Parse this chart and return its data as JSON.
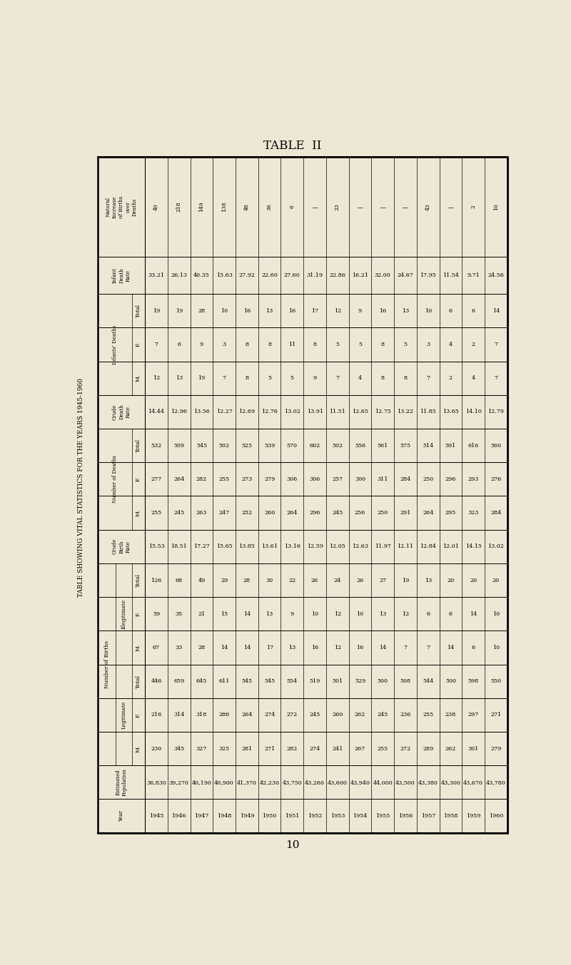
{
  "title": "TABLE  II",
  "subtitle": "TABLE SHOWING VITAL STATISTICS FOR THE YEARS 1945-1960",
  "page_number": "10",
  "background_color": "#ede8d5",
  "years": [
    "1945",
    "1946",
    "1947",
    "1948",
    "1949",
    "1950",
    "1951",
    "1952",
    "1953",
    "1954",
    "1955",
    "1956",
    "1957",
    "1958",
    "1959",
    "1960"
  ],
  "estimated_population": [
    "36,830",
    "39,270",
    "40,190",
    "40,900",
    "41,370",
    "42,230",
    "43,750",
    "43,260",
    "43,600",
    "43,940",
    "44,000",
    "43,500",
    "43,380",
    "43,300",
    "43,670",
    "43,780"
  ],
  "legit_M": [
    "230",
    "345",
    "327",
    "325",
    "281",
    "271",
    "282",
    "274",
    "241",
    "267",
    "255",
    "272",
    "289",
    "262",
    "301",
    "279"
  ],
  "legit_F": [
    "216",
    "314",
    "318",
    "286",
    "264",
    "274",
    "272",
    "245",
    "260",
    "262",
    "245",
    "236",
    "255",
    "238",
    "297",
    "271"
  ],
  "legit_Total": [
    "446",
    "659",
    "645",
    "611",
    "545",
    "545",
    "554",
    "519",
    "501",
    "529",
    "500",
    "508",
    "544",
    "500",
    "598",
    "550"
  ],
  "illeg_M": [
    "67",
    "33",
    "28",
    "14",
    "14",
    "17",
    "13",
    "16",
    "12",
    "16",
    "14",
    "7",
    "7",
    "14",
    "6",
    "10"
  ],
  "illeg_F": [
    "59",
    "35",
    "21",
    "15",
    "14",
    "13",
    "9",
    "10",
    "12",
    "10",
    "13",
    "12",
    "6",
    "6",
    "14",
    "10"
  ],
  "illeg_Total": [
    "126",
    "68",
    "49",
    "29",
    "28",
    "30",
    "22",
    "26",
    "24",
    "26",
    "27",
    "19",
    "13",
    "20",
    "20",
    "20"
  ],
  "crude_birth_rate": [
    "15.53",
    "18.51",
    "17.27",
    "15.65",
    "13.85",
    "13.61",
    "13.16",
    "12.59",
    "12.05",
    "12.63",
    "11.97",
    "12.11",
    "12.84",
    "12.01",
    "14.15",
    "13.02"
  ],
  "deaths_M": [
    "255",
    "245",
    "263",
    "247",
    "252",
    "260",
    "264",
    "296",
    "245",
    "256",
    "250",
    "291",
    "264",
    "295",
    "323",
    "284"
  ],
  "deaths_F": [
    "277",
    "264",
    "282",
    "255",
    "273",
    "279",
    "306",
    "306",
    "257",
    "300",
    "311",
    "284",
    "250",
    "296",
    "293",
    "276"
  ],
  "deaths_Total": [
    "532",
    "509",
    "545",
    "502",
    "525",
    "539",
    "570",
    "602",
    "502",
    "556",
    "561",
    "575",
    "514",
    "591",
    "616",
    "560"
  ],
  "crude_death_rate": [
    "14.44",
    "12.96",
    "13.56",
    "12.27",
    "12.69",
    "12.76",
    "13.02",
    "13.91",
    "11.51",
    "12.65",
    "12.75",
    "13.22",
    "11.85",
    "13.65",
    "14.10",
    "12.79"
  ],
  "infants_M": [
    "12",
    "13",
    "19",
    "7",
    "8",
    "5",
    "5",
    "9",
    "7",
    "4",
    "8",
    "8",
    "7",
    "2",
    "4",
    "7"
  ],
  "infants_F": [
    "7",
    "6",
    "9",
    "3",
    "8",
    "8",
    "11",
    "8",
    "5",
    "5",
    "8",
    "5",
    "3",
    "4",
    "2",
    "7"
  ],
  "infants_Total": [
    "19",
    "19",
    "28",
    "10",
    "16",
    "13",
    "16",
    "17",
    "12",
    "9",
    "16",
    "13",
    "10",
    "6",
    "6",
    "14"
  ],
  "infant_death_rate": [
    "33.21",
    "26.13",
    "40.35",
    "15.63",
    "27.92",
    "22.60",
    "27.60",
    "31.19",
    "22.86",
    "16.21",
    "32.00",
    "24.67",
    "17.95",
    "11.54",
    "9.71",
    "24.56"
  ],
  "natural_increase": [
    "40",
    "218",
    "149",
    "138",
    "48",
    "36",
    "6",
    "|",
    "23",
    "|",
    "|",
    "|",
    "43",
    "|",
    "2",
    "10"
  ]
}
